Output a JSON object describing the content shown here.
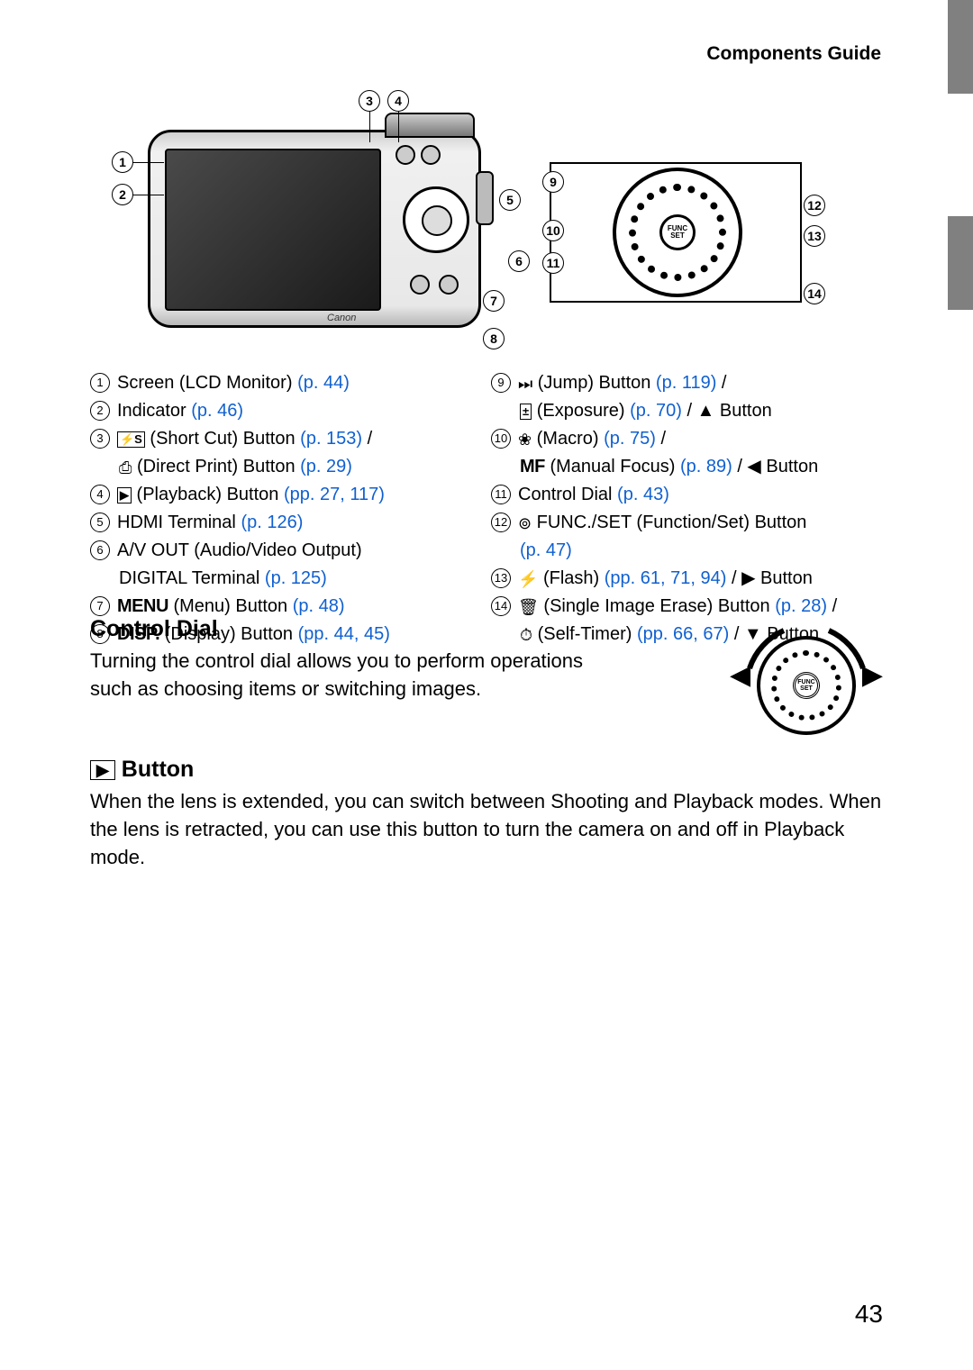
{
  "header": {
    "title": "Components Guide"
  },
  "page_number": "43",
  "callouts": {
    "c1": "1",
    "c2": "2",
    "c3": "3",
    "c4": "4",
    "c5": "5",
    "c6": "6",
    "c7": "7",
    "c8": "8",
    "c9": "9",
    "c10": "10",
    "c11": "11",
    "c12": "12",
    "c13": "13",
    "c14": "14"
  },
  "camera_logo": "Canon",
  "func_set_label": "FUNC\nSET",
  "legend_left": [
    {
      "n": "1",
      "lines": [
        {
          "parts": [
            {
              "t": "Screen (LCD Monitor) "
            },
            {
              "t": "(p. 44)",
              "cls": "pref"
            }
          ]
        }
      ]
    },
    {
      "n": "2",
      "lines": [
        {
          "parts": [
            {
              "t": "Indicator "
            },
            {
              "t": "(p. 46)",
              "cls": "pref"
            }
          ]
        }
      ]
    },
    {
      "n": "3",
      "lines": [
        {
          "parts": [
            {
              "icon": "⚡S",
              "style": "box"
            },
            {
              "t": " (Short Cut) Button "
            },
            {
              "t": "(p. 153)",
              "cls": "pref"
            },
            {
              "t": " /"
            }
          ]
        },
        {
          "indent": true,
          "parts": [
            {
              "icon": "⎙",
              "style": "plain"
            },
            {
              "t": " (Direct Print) Button "
            },
            {
              "t": "(p. 29)",
              "cls": "pref"
            }
          ]
        }
      ]
    },
    {
      "n": "4",
      "lines": [
        {
          "parts": [
            {
              "icon": "▶",
              "style": "box"
            },
            {
              "t": " (Playback) Button "
            },
            {
              "t": "(pp. 27, 117)",
              "cls": "pref"
            }
          ]
        }
      ]
    },
    {
      "n": "5",
      "lines": [
        {
          "parts": [
            {
              "t": "HDMI Terminal "
            },
            {
              "t": "(p. 126)",
              "cls": "pref"
            }
          ]
        }
      ]
    },
    {
      "n": "6",
      "lines": [
        {
          "parts": [
            {
              "t": "A/V OUT (Audio/Video Output) "
            }
          ]
        },
        {
          "indent": true,
          "parts": [
            {
              "t": "DIGITAL Terminal "
            },
            {
              "t": "(p. 125)",
              "cls": "pref"
            }
          ]
        }
      ]
    },
    {
      "n": "7",
      "lines": [
        {
          "parts": [
            {
              "t": "MENU",
              "cls": "bold-inline"
            },
            {
              "t": " (Menu) Button "
            },
            {
              "t": "(p. 48)",
              "cls": "pref"
            }
          ]
        }
      ]
    },
    {
      "n": "8",
      "lines": [
        {
          "parts": [
            {
              "t": "DISP.",
              "cls": "bold-inline"
            },
            {
              "t": " (Display) Button "
            },
            {
              "t": "(pp. 44, 45)",
              "cls": "pref"
            }
          ]
        }
      ]
    }
  ],
  "legend_right": [
    {
      "n": "9",
      "lines": [
        {
          "parts": [
            {
              "icon": "⏭",
              "style": "plain"
            },
            {
              "t": " (Jump) Button "
            },
            {
              "t": "(p. 119)",
              "cls": "pref"
            },
            {
              "t": " /"
            }
          ]
        },
        {
          "indent": true,
          "parts": [
            {
              "icon": "±",
              "style": "box"
            },
            {
              "t": " (Exposure) "
            },
            {
              "t": "(p. 70)",
              "cls": "pref"
            },
            {
              "t": " / ▲ Button"
            }
          ]
        }
      ]
    },
    {
      "n": "10",
      "lines": [
        {
          "parts": [
            {
              "icon": "❀",
              "style": "plain"
            },
            {
              "t": " (Macro) "
            },
            {
              "t": "(p. 75)",
              "cls": "pref"
            },
            {
              "t": " /"
            }
          ]
        },
        {
          "indent": true,
          "parts": [
            {
              "t": "MF",
              "cls": "bold-inline"
            },
            {
              "t": " (Manual Focus) "
            },
            {
              "t": "(p. 89)",
              "cls": "pref"
            },
            {
              "t": " / ◀ Button"
            }
          ]
        }
      ]
    },
    {
      "n": "11",
      "lines": [
        {
          "parts": [
            {
              "t": "Control Dial "
            },
            {
              "t": "(p. 43)",
              "cls": "pref"
            }
          ]
        }
      ]
    },
    {
      "n": "12",
      "lines": [
        {
          "parts": [
            {
              "icon": "⊚",
              "style": "plain"
            },
            {
              "t": " FUNC./SET (Function/Set) Button"
            }
          ]
        },
        {
          "indent": true,
          "parts": [
            {
              "t": "(p. 47)",
              "cls": "pref"
            }
          ]
        }
      ]
    },
    {
      "n": "13",
      "lines": [
        {
          "parts": [
            {
              "icon": "⚡",
              "style": "plain"
            },
            {
              "t": " (Flash) "
            },
            {
              "t": "(pp. 61, 71, 94)",
              "cls": "pref"
            },
            {
              "t": " / ▶ Button"
            }
          ]
        }
      ]
    },
    {
      "n": "14",
      "lines": [
        {
          "parts": [
            {
              "icon": "🗑",
              "style": "plain"
            },
            {
              "t": " (Single Image Erase) Button "
            },
            {
              "t": "(p. 28)",
              "cls": "pref"
            },
            {
              "t": " /"
            }
          ]
        },
        {
          "indent": true,
          "parts": [
            {
              "icon": "⏱",
              "style": "plain"
            },
            {
              "t": " (Self-Timer) "
            },
            {
              "t": "(pp. 66, 67)",
              "cls": "pref"
            },
            {
              "t": " / ▼ Button"
            }
          ]
        }
      ]
    }
  ],
  "sections": {
    "control_dial": {
      "heading": "Control Dial",
      "body": "Turning the control dial allows you to perform operations such as choosing items or switching images."
    },
    "playback_button": {
      "heading_icon": "▶",
      "heading": " Button",
      "body": "When the lens is extended, you can switch between Shooting and Playback modes. When the lens is retracted, you can use this button to turn the camera on and off in Playback mode."
    }
  }
}
